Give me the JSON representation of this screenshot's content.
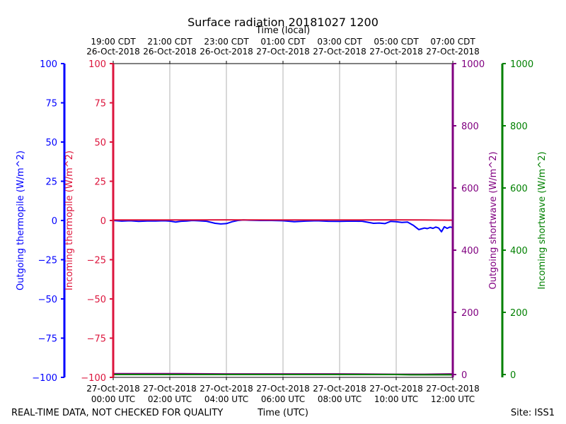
{
  "chart_data": {
    "type": "line",
    "title": "Surface radiation 20181027 1200",
    "top_axis_label": "Time (local)",
    "bottom_axis_label": "Time (UTC)",
    "x_range_hours": [
      0,
      12
    ],
    "local_ticks": [
      {
        "hour": 0,
        "time": "19:00 CDT",
        "date": "26-Oct-2018"
      },
      {
        "hour": 2,
        "time": "21:00 CDT",
        "date": "26-Oct-2018"
      },
      {
        "hour": 4,
        "time": "23:00 CDT",
        "date": "26-Oct-2018"
      },
      {
        "hour": 6,
        "time": "01:00 CDT",
        "date": "27-Oct-2018"
      },
      {
        "hour": 8,
        "time": "03:00 CDT",
        "date": "27-Oct-2018"
      },
      {
        "hour": 10,
        "time": "05:00 CDT",
        "date": "27-Oct-2018"
      },
      {
        "hour": 12,
        "time": "07:00 CDT",
        "date": "27-Oct-2018"
      }
    ],
    "utc_ticks": [
      {
        "hour": 0,
        "date": "27-Oct-2018",
        "time": "00:00 UTC"
      },
      {
        "hour": 2,
        "date": "27-Oct-2018",
        "time": "02:00 UTC"
      },
      {
        "hour": 4,
        "date": "27-Oct-2018",
        "time": "04:00 UTC"
      },
      {
        "hour": 6,
        "date": "27-Oct-2018",
        "time": "06:00 UTC"
      },
      {
        "hour": 8,
        "date": "27-Oct-2018",
        "time": "08:00 UTC"
      },
      {
        "hour": 10,
        "date": "27-Oct-2018",
        "time": "10:00 UTC"
      },
      {
        "hour": 12,
        "date": "27-Oct-2018",
        "time": "12:00 UTC"
      }
    ],
    "axes": {
      "outgoing_thermopile": {
        "label": "Outgoing thermopile (W/m^2)",
        "color": "#0000ff",
        "ylim": [
          -100,
          100
        ],
        "ticks": [
          "100",
          "75",
          "50",
          "25",
          "0",
          "−25",
          "−50",
          "−75",
          "−100"
        ]
      },
      "incoming_thermopile": {
        "label": "Incoming thermopile (W/m^2)",
        "color": "#dc143c",
        "ylim": [
          -100,
          100
        ],
        "ticks": [
          "100",
          "75",
          "50",
          "25",
          "0",
          "−25",
          "−50",
          "−75",
          "−100"
        ]
      },
      "outgoing_shortwave": {
        "label": "Outgoing shortwave (W/m^2)",
        "color": "#800080",
        "ylim": [
          0,
          1000
        ],
        "ticks": [
          "1000",
          "800",
          "600",
          "400",
          "200",
          "0"
        ]
      },
      "incoming_shortwave": {
        "label": "Incoming shortwave (W/m^2)",
        "color": "#008000",
        "ylim": [
          0,
          1000
        ],
        "ticks": [
          "1000",
          "800",
          "600",
          "400",
          "200",
          "0"
        ]
      }
    },
    "series": [
      {
        "name": "Outgoing thermopile",
        "axis": "outgoing_thermopile",
        "color": "#0000ff",
        "x": [
          0,
          0.3,
          0.6,
          0.9,
          1.2,
          1.5,
          1.8,
          2.0,
          2.2,
          2.4,
          2.6,
          2.8,
          3.0,
          3.3,
          3.6,
          3.8,
          4.0,
          4.2,
          4.4,
          4.6,
          4.8,
          5.2,
          5.6,
          6.0,
          6.4,
          6.8,
          7.2,
          7.6,
          8.0,
          8.4,
          8.8,
          9.2,
          9.4,
          9.6,
          9.8,
          10.0,
          10.2,
          10.4,
          10.6,
          10.8,
          11.0,
          11.1,
          11.2,
          11.3,
          11.4,
          11.5,
          11.6,
          11.7,
          11.8,
          11.9,
          12.0
        ],
        "y": [
          0,
          -0.4,
          -0.2,
          -0.6,
          -0.3,
          -0.3,
          -0.2,
          -0.4,
          -1,
          -0.5,
          -0.3,
          0,
          -0.2,
          -0.5,
          -1.8,
          -2.2,
          -2.0,
          -0.8,
          0,
          0.3,
          0.2,
          0,
          0,
          -0.2,
          -0.8,
          -0.4,
          -0.2,
          -0.5,
          -0.6,
          -0.4,
          -0.5,
          -1.8,
          -1.6,
          -2.0,
          -0.6,
          -0.8,
          -1.2,
          -1.0,
          -3.0,
          -5.8,
          -4.8,
          -5.2,
          -4.5,
          -5.0,
          -4.2,
          -4.8,
          -7.2,
          -4.0,
          -5.0,
          -4.2,
          -4.5
        ]
      },
      {
        "name": "Incoming thermopile",
        "axis": "incoming_thermopile",
        "color": "#dc143c",
        "x": [
          0,
          2,
          4,
          6,
          8,
          10,
          11,
          12
        ],
        "y": [
          0.3,
          0.3,
          0.4,
          0.3,
          0.3,
          0.4,
          0.3,
          0.2
        ]
      },
      {
        "name": "Outgoing shortwave",
        "axis": "outgoing_shortwave",
        "color": "#800080",
        "x": [
          0,
          2,
          4,
          6,
          8,
          10,
          11,
          12
        ],
        "y": [
          3,
          3,
          2,
          2,
          2,
          1,
          1,
          2
        ]
      },
      {
        "name": "Incoming shortwave",
        "axis": "incoming_shortwave",
        "color": "#008000",
        "x": [
          0,
          2,
          4,
          6,
          8,
          10,
          10.5,
          11,
          11.5,
          12
        ],
        "y": [
          0,
          0,
          0,
          0,
          0,
          0,
          -1,
          -1,
          -1,
          -1
        ]
      }
    ]
  },
  "footer": {
    "left": "REAL-TIME DATA, NOT CHECKED FOR QUALITY",
    "center": "Time (UTC)",
    "right": "Site: ISS1"
  }
}
